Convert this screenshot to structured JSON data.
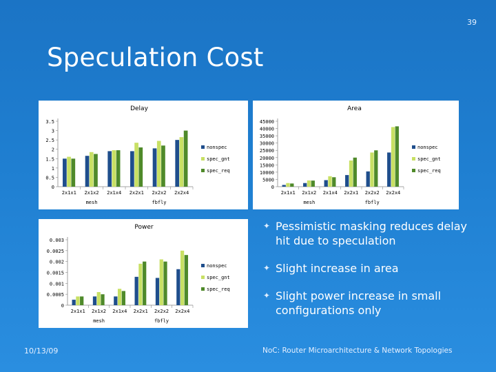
{
  "slide_number": "39",
  "title": "Speculation Cost",
  "bullets": [
    "Pessimistic masking reduces delay hit due to speculation",
    "Slight increase in area",
    "Slight power increase in small configurations only"
  ],
  "footer": {
    "date": "10/13/09",
    "text": "NoC: Router Microarchitecture & Network Topologies"
  },
  "colors": {
    "nonspec": "#1f4e8c",
    "spec_gnt": "#c8e064",
    "spec_req": "#4f8a2a"
  },
  "chart_data": [
    {
      "type": "bar",
      "title": "Delay",
      "categories": [
        "2x1x1",
        "2x1x2",
        "2x1x4",
        "2x2x1",
        "2x2x2",
        "2x2x4"
      ],
      "groups": [
        "mesh",
        "fbfly"
      ],
      "yticks": [
        "0",
        "0.5",
        "1",
        "1.5",
        "2",
        "2.5",
        "3",
        "3.5"
      ],
      "ylim": [
        0,
        3.5
      ],
      "series": [
        {
          "name": "nonspec",
          "values": [
            1.5,
            1.65,
            1.9,
            1.9,
            2.05,
            2.5
          ]
        },
        {
          "name": "spec_gnt",
          "values": [
            1.6,
            1.85,
            1.95,
            2.35,
            2.45,
            2.65
          ]
        },
        {
          "name": "spec_req",
          "values": [
            1.5,
            1.75,
            1.95,
            2.1,
            2.2,
            3.0
          ]
        }
      ],
      "legend": "right"
    },
    {
      "type": "bar",
      "title": "Area",
      "categories": [
        "2x1x1",
        "2x1x2",
        "2x1x4",
        "2x2x1",
        "2x2x2",
        "2x2x4"
      ],
      "groups": [
        "mesh",
        "fbfly"
      ],
      "yticks": [
        "0",
        "5000",
        "10000",
        "15000",
        "20000",
        "25000",
        "30000",
        "35000",
        "40000",
        "45000"
      ],
      "ylim": [
        0,
        45000
      ],
      "series": [
        {
          "name": "nonspec",
          "values": [
            1200,
            2500,
            4500,
            8000,
            10500,
            23500
          ]
        },
        {
          "name": "spec_gnt",
          "values": [
            2500,
            4300,
            7200,
            18000,
            23500,
            41000
          ]
        },
        {
          "name": "spec_req",
          "values": [
            2200,
            4200,
            6500,
            20000,
            25000,
            41500
          ]
        }
      ],
      "legend": "right"
    },
    {
      "type": "bar",
      "title": "Power",
      "categories": [
        "2x1x1",
        "2x1x2",
        "2x1x4",
        "2x2x1",
        "2x2x2",
        "2x2x4"
      ],
      "groups": [
        "mesh",
        "fbfly"
      ],
      "yticks": [
        "0",
        "0.0005",
        "0.001",
        "0.0015",
        "0.002",
        "0.0025",
        "0.003"
      ],
      "ylim": [
        0,
        0.003
      ],
      "series": [
        {
          "name": "nonspec",
          "values": [
            0.00025,
            0.0004,
            0.0004,
            0.0013,
            0.00125,
            0.00165
          ]
        },
        {
          "name": "spec_gnt",
          "values": [
            0.0004,
            0.0006,
            0.00075,
            0.0019,
            0.0021,
            0.0025
          ]
        },
        {
          "name": "spec_req",
          "values": [
            0.0004,
            0.0005,
            0.00065,
            0.002,
            0.002,
            0.0023
          ]
        }
      ],
      "legend": "right"
    }
  ]
}
